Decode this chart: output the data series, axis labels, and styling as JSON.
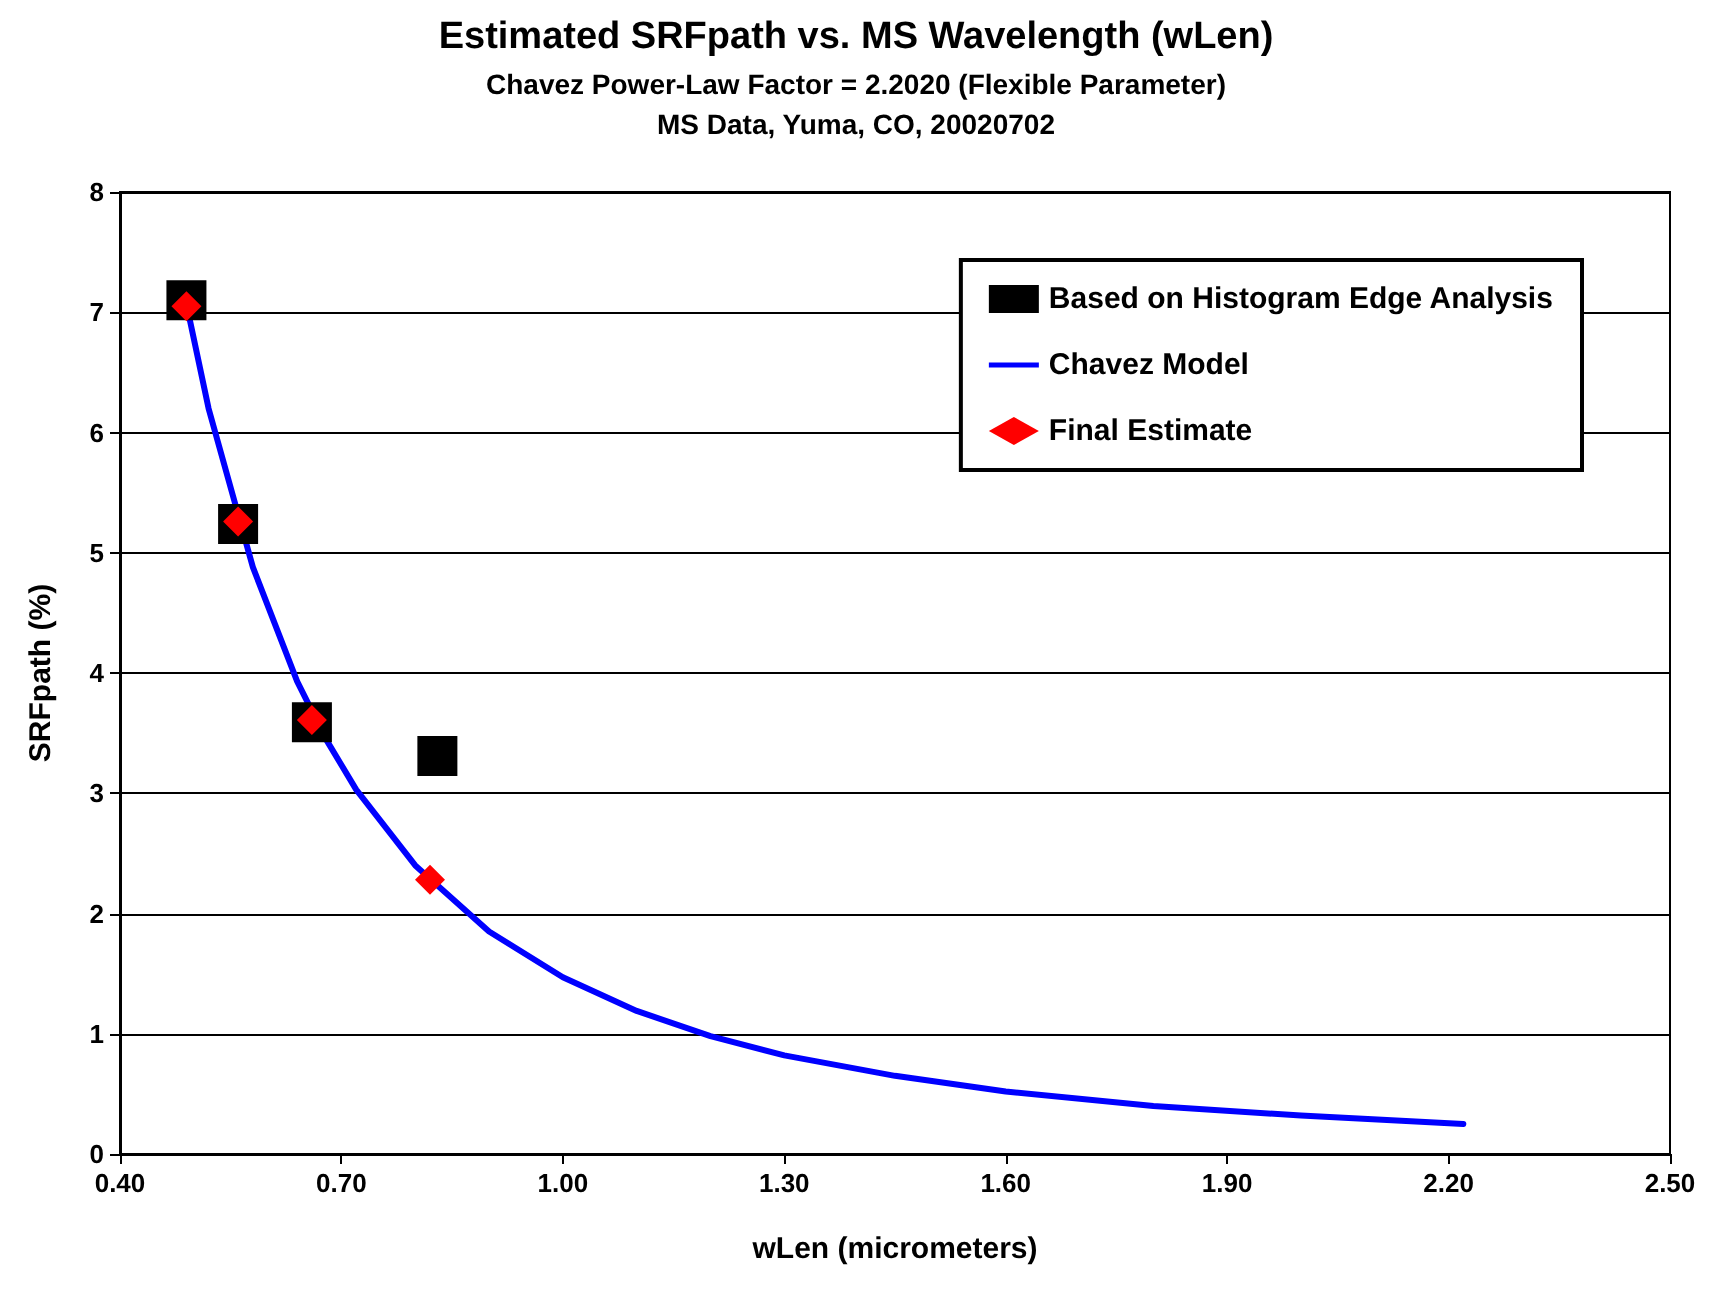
{
  "chart_data": {
    "type": "scatter",
    "title": "Estimated SRFpath vs. MS Wavelength (wLen)",
    "subtitle": "Chavez Power-Law Factor = 2.2020 (Flexible Parameter)\nMS Data, Yuma, CO, 20020702",
    "xlabel": "wLen (micrometers)",
    "ylabel": "SRFpath (%)",
    "series": [
      {
        "name": "Based on Histogram Edge Analysis",
        "marker": "square",
        "color": "#000000",
        "x": [
          0.49,
          0.56,
          0.66,
          0.83
        ],
        "values": [
          7.1,
          5.24,
          3.59,
          3.31
        ]
      },
      {
        "name": "Chavez Model",
        "type": "line",
        "marker": "none",
        "color": "#0000ff",
        "x": [
          0.49,
          0.52,
          0.58,
          0.64,
          0.68,
          0.72,
          0.8,
          0.9,
          1.0,
          1.1,
          1.2,
          1.3,
          1.45,
          1.6,
          1.8,
          2.0,
          2.22
        ],
        "values": [
          7.07,
          6.2,
          4.88,
          3.93,
          3.44,
          3.03,
          2.4,
          1.85,
          1.47,
          1.19,
          0.98,
          0.82,
          0.65,
          0.52,
          0.4,
          0.32,
          0.25
        ]
      },
      {
        "name": "Final Estimate",
        "marker": "diamond",
        "color": "#ff0000",
        "x": [
          0.49,
          0.56,
          0.66,
          0.82
        ],
        "values": [
          7.05,
          5.26,
          3.61,
          2.28
        ]
      }
    ],
    "xlim": [
      0.4,
      2.5
    ],
    "xticks": [
      {
        "value": 0.4,
        "label": "0.40"
      },
      {
        "value": 0.7,
        "label": "0.70"
      },
      {
        "value": 1.0,
        "label": "1.00"
      },
      {
        "value": 1.3,
        "label": "1.30"
      },
      {
        "value": 1.6,
        "label": "1.60"
      },
      {
        "value": 1.9,
        "label": "1.90"
      },
      {
        "value": 2.2,
        "label": "2.20"
      },
      {
        "value": 2.5,
        "label": "2.50"
      }
    ],
    "ylim": [
      0,
      8
    ],
    "yticks": [
      0,
      1,
      2,
      3,
      4,
      5,
      6,
      7,
      8
    ],
    "grid": "y",
    "legend": "top right"
  }
}
